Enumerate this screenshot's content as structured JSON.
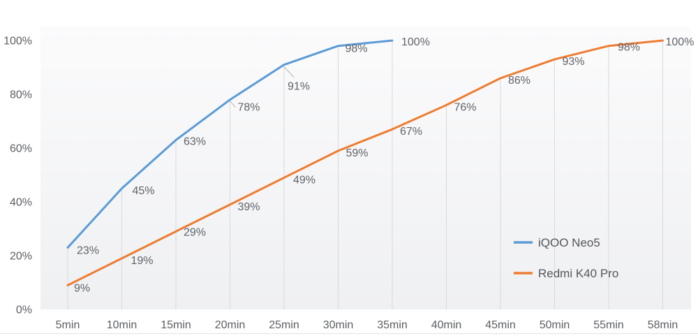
{
  "chart_data": {
    "type": "line",
    "title": "",
    "xlabel": "",
    "ylabel": "",
    "categories": [
      "5min",
      "10min",
      "15min",
      "20min",
      "25min",
      "30min",
      "35min",
      "40min",
      "45min",
      "50min",
      "55min",
      "58min"
    ],
    "series": [
      {
        "name": "iQOO Neo5",
        "color": "#5B9BD5",
        "values": [
          23,
          45,
          63,
          78,
          91,
          98,
          100
        ],
        "labels": [
          "23%",
          "45%",
          "63%",
          "78%",
          "91%",
          "98%",
          "100%"
        ]
      },
      {
        "name": "Redmi K40 Pro",
        "color": "#ED7D31",
        "values": [
          9,
          19,
          29,
          39,
          49,
          59,
          67,
          76,
          86,
          93,
          98,
          100
        ],
        "labels": [
          "9%",
          "19%",
          "29%",
          "39%",
          "49%",
          "59%",
          "67%",
          "76%",
          "86%",
          "93%",
          "98%",
          "100%"
        ]
      }
    ],
    "y_ticks": [
      {
        "value": 0,
        "label": "0%"
      },
      {
        "value": 20,
        "label": "20%"
      },
      {
        "value": 40,
        "label": "40%"
      },
      {
        "value": 60,
        "label": "60%"
      },
      {
        "value": 80,
        "label": "80%"
      },
      {
        "value": 100,
        "label": "100%"
      }
    ],
    "ylim": [
      0,
      105
    ],
    "grid": "vertical drop lines from highest data point down to x-axis at each category",
    "legend_position": "inside-right-middle",
    "legend": [
      "iQOO Neo5",
      "Redmi K40 Pro"
    ],
    "colors": {
      "drop_line": "#d9d9d9",
      "leader_line": "#b3b3b3",
      "axis_text": "#5c5e62",
      "data_label_text": "#616368",
      "legend_text": "#54565a",
      "plot_bg_top": "#fbfbfc",
      "plot_bg_bottom": "#eff0f2",
      "page_bottom_border": "#dce2e9"
    }
  }
}
